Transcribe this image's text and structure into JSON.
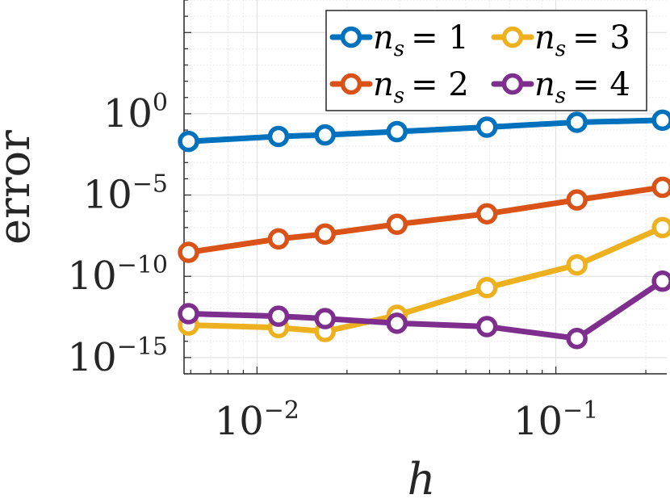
{
  "chart_data": {
    "type": "line",
    "xscale": "log",
    "yscale": "log",
    "xlabel": "h",
    "ylabel": "error",
    "xlim": [
      0.0057,
      0.235
    ],
    "ylim": [
      1e-16,
      10000000.0
    ],
    "grid": true,
    "legend_position": "top-right",
    "x": [
      0.0059,
      0.0118,
      0.0169,
      0.0294,
      0.0588,
      0.1176,
      0.2273
    ],
    "series": [
      {
        "name": "n_s = 1",
        "label_var": "n",
        "label_sub": "s",
        "label_eq": "= 1",
        "color": "#0072BD",
        "values": [
          0.02,
          0.04,
          0.05,
          0.08,
          0.15,
          0.3,
          0.4
        ]
      },
      {
        "name": "n_s = 2",
        "label_var": "n",
        "label_sub": "s",
        "label_eq": "= 2",
        "color": "#D95319",
        "values": [
          3e-09,
          2e-08,
          4e-08,
          1.6e-07,
          7e-07,
          5e-06,
          3e-05
        ]
      },
      {
        "name": "n_s = 3",
        "label_var": "n",
        "label_sub": "s",
        "label_eq": "= 3",
        "color": "#EDB120",
        "values": [
          1e-13,
          7e-14,
          4e-14,
          4e-13,
          2e-11,
          5e-10,
          1e-07
        ]
      },
      {
        "name": "n_s = 4",
        "label_var": "n",
        "label_sub": "s",
        "label_eq": "= 4",
        "color": "#7E2F8E",
        "values": [
          5e-13,
          3.5e-13,
          2.5e-13,
          1.3e-13,
          8e-14,
          1.5e-14,
          5e-11
        ]
      }
    ],
    "x_ticks": [
      {
        "value": 0.01,
        "base": "10",
        "exp": "−2"
      },
      {
        "value": 0.1,
        "base": "10",
        "exp": "−1"
      }
    ],
    "y_ticks": [
      {
        "value": 1,
        "base": "10",
        "exp": "0"
      },
      {
        "value": 1e-05,
        "base": "10",
        "exp": "−5"
      },
      {
        "value": 1e-10,
        "base": "10",
        "exp": "−10"
      },
      {
        "value": 1e-15,
        "base": "10",
        "exp": "−15"
      }
    ]
  }
}
